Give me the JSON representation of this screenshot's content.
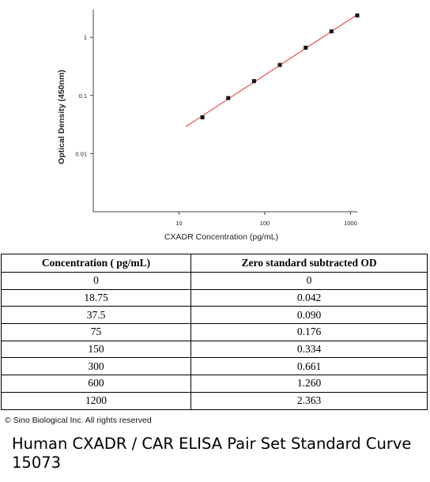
{
  "chart_data": {
    "type": "scatter",
    "ylabel": "Optical Density (450nm)",
    "xlabel": "CXADR Concentration (pg/mL)",
    "x_scale": "log",
    "y_scale": "log",
    "xlim": [
      1,
      1200
    ],
    "ylim": [
      0.001,
      3
    ],
    "x_ticks": [
      {
        "value": 10,
        "label": "10"
      },
      {
        "value": 100,
        "label": "100"
      },
      {
        "value": 1000,
        "label": "1000"
      }
    ],
    "y_ticks": [
      {
        "value": 0.01,
        "label": "0.01"
      },
      {
        "value": 0.1,
        "label": "0.1"
      },
      {
        "value": 1,
        "label": "1"
      }
    ],
    "grid": false,
    "marker_color": "#111111",
    "fit_color": "#e8332f",
    "series": [
      {
        "x": [
          18.75,
          37.5,
          75,
          150,
          300,
          600,
          1200
        ],
        "y": [
          0.042,
          0.09,
          0.176,
          0.334,
          0.661,
          1.26,
          2.363
        ]
      }
    ],
    "fit_line": {
      "x": [
        12,
        1200
      ],
      "y": [
        0.029,
        2.45
      ]
    }
  },
  "table": {
    "headers": [
      "Concentration ( pg/mL)",
      "Zero standard subtracted OD"
    ],
    "rows": [
      [
        "0",
        "0"
      ],
      [
        "18.75",
        "0.042"
      ],
      [
        "37.5",
        "0.090"
      ],
      [
        "75",
        "0.176"
      ],
      [
        "150",
        "0.334"
      ],
      [
        "300",
        "0.661"
      ],
      [
        "600",
        "1.260"
      ],
      [
        "1200",
        "2.363"
      ]
    ]
  },
  "copyright": "© Sino Biological Inc. All rights reserved",
  "caption": "Human CXADR / CAR ELISA Pair Set Standard Curve 15073"
}
